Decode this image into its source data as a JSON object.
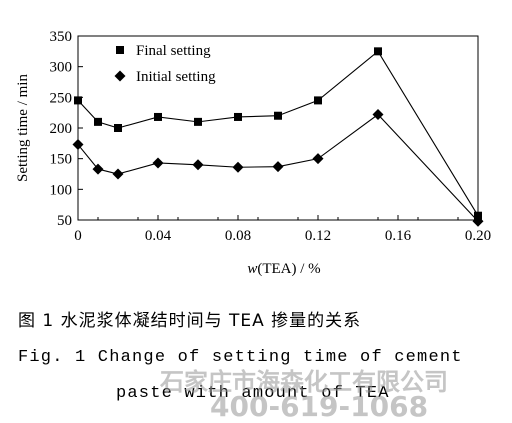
{
  "chart_data": {
    "type": "line",
    "xlabel_italic": "w",
    "xlabel_rest": "(TEA) / %",
    "ylabel": "Setting time / min",
    "xlim": [
      0,
      0.2
    ],
    "ylim": [
      50,
      350
    ],
    "xticks": [
      0,
      0.04,
      0.08,
      0.12,
      0.16,
      0.2
    ],
    "xtick_labels": [
      "0",
      "0.04",
      "0.08",
      "0.12",
      "0.16",
      "0.20"
    ],
    "yticks": [
      50,
      100,
      150,
      200,
      250,
      300,
      350
    ],
    "ytick_labels": [
      "50",
      "100",
      "150",
      "200",
      "250",
      "300",
      "350"
    ],
    "legend_position": "top-left",
    "grid": false,
    "series": [
      {
        "name": "Final setting",
        "marker": "square",
        "x": [
          0,
          0.01,
          0.02,
          0.04,
          0.06,
          0.08,
          0.1,
          0.12,
          0.15,
          0.2
        ],
        "y": [
          245,
          210,
          200,
          218,
          210,
          218,
          220,
          245,
          325,
          57
        ]
      },
      {
        "name": "Initial setting",
        "marker": "diamond",
        "x": [
          0,
          0.01,
          0.02,
          0.04,
          0.06,
          0.08,
          0.1,
          0.12,
          0.15,
          0.2
        ],
        "y": [
          173,
          133,
          125,
          143,
          140,
          136,
          137,
          150,
          222,
          48
        ]
      }
    ]
  },
  "caption": {
    "cn": "图 1   水泥浆体凝结时间与 TEA 掺量的关系",
    "en_line1": "Fig. 1    Change of setting time of cement",
    "en_line2": "paste with amount of TEA"
  },
  "watermark": {
    "line1": "石家庄市海森化工有限公司",
    "line2": "400-619-1068"
  }
}
